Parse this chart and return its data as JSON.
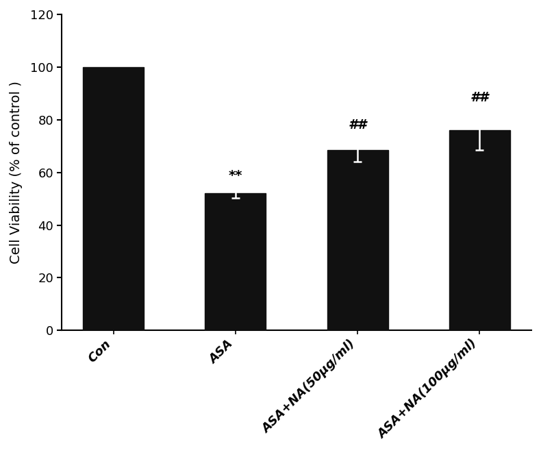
{
  "categories": [
    "Con",
    "ASA",
    "ASA+NA(50μg/ml)",
    "ASA+NA(100μg/ml)"
  ],
  "values": [
    100.0,
    52.0,
    68.5,
    76.0
  ],
  "errors": [
    0.0,
    1.8,
    4.5,
    7.5
  ],
  "bar_color": "#111111",
  "bar_width": 0.5,
  "ylabel": "Cell Viability (% of control )",
  "ylim": [
    0,
    120
  ],
  "yticks": [
    0,
    20,
    40,
    60,
    80,
    100,
    120
  ],
  "significance_labels": [
    "",
    "**",
    "##",
    "##"
  ],
  "sig_fontsize": 14,
  "ylabel_fontsize": 14,
  "tick_fontsize": 13,
  "xlabel_tick_fontsize": 13,
  "background_color": "#ffffff",
  "spine_linewidth": 1.5,
  "capsize": 4,
  "error_linewidth": 1.8,
  "x_positions": [
    0,
    1,
    2,
    3
  ]
}
